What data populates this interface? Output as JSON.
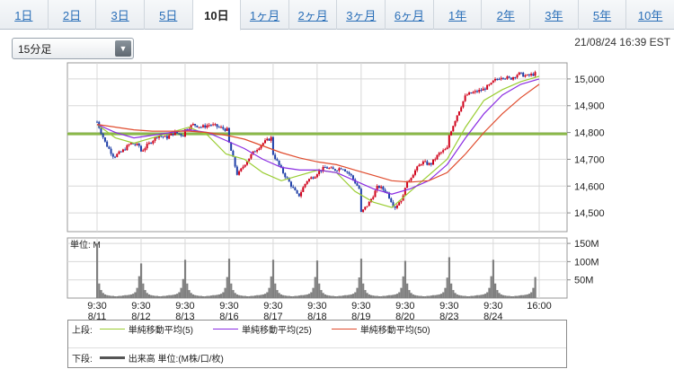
{
  "tabs": [
    {
      "label": "1日",
      "active": false
    },
    {
      "label": "2日",
      "active": false
    },
    {
      "label": "3日",
      "active": false
    },
    {
      "label": "5日",
      "active": false
    },
    {
      "label": "10日",
      "active": true
    },
    {
      "label": "1ヶ月",
      "active": false
    },
    {
      "label": "2ヶ月",
      "active": false
    },
    {
      "label": "3ヶ月",
      "active": false
    },
    {
      "label": "6ヶ月",
      "active": false
    },
    {
      "label": "1年",
      "active": false
    },
    {
      "label": "2年",
      "active": false
    },
    {
      "label": "3年",
      "active": false
    },
    {
      "label": "5年",
      "active": false
    },
    {
      "label": "10年",
      "active": false
    }
  ],
  "interval_select": {
    "value": "15分足"
  },
  "timestamp": "21/08/24 16:39 EST",
  "colors": {
    "up": "#d0021b",
    "down": "#1f3fa8",
    "ma5": "#9acd32",
    "ma25": "#8a2be2",
    "ma50": "#e04b2d",
    "ref_line": "#8ab849",
    "volume": "#808080",
    "grid": "#d8d8d8"
  },
  "chart_data": [
    {
      "type": "candlestick",
      "y_ticks": [
        "15,000",
        "14,900",
        "14,800",
        "14,700",
        "14,600",
        "14,500"
      ],
      "y_tick_values": [
        15000,
        14900,
        14800,
        14700,
        14600,
        14500
      ],
      "ylim": [
        14430,
        15060
      ],
      "reference_line": 14795,
      "x_ticks": [
        {
          "time": "9:30",
          "date": "8/11"
        },
        {
          "time": "9:30",
          "date": "8/12"
        },
        {
          "time": "9:30",
          "date": "8/13"
        },
        {
          "time": "9:30",
          "date": "8/16"
        },
        {
          "time": "9:30",
          "date": "8/17"
        },
        {
          "time": "9:30",
          "date": "8/18"
        },
        {
          "time": "9:30",
          "date": "8/19"
        },
        {
          "time": "9:30",
          "date": "8/20"
        },
        {
          "time": "9:30",
          "date": "8/23"
        },
        {
          "time": "9:30",
          "date": "8/24"
        },
        {
          "time": "16:00",
          "date": ""
        }
      ],
      "day_closes": [
        [
          14840,
          14760,
          14710,
          14730,
          14760,
          14750
        ],
        [
          14730,
          14760,
          14790,
          14780,
          14800,
          14790
        ],
        [
          14810,
          14830,
          14820,
          14830,
          14820,
          14810
        ],
        [
          14760,
          14640,
          14690,
          14730,
          14760,
          14780
        ],
        [
          14720,
          14660,
          14610,
          14560,
          14620,
          14640
        ],
        [
          14650,
          14670,
          14660,
          14670,
          14640,
          14590
        ],
        [
          14500,
          14540,
          14600,
          14580,
          14520,
          14560
        ],
        [
          14600,
          14650,
          14690,
          14680,
          14720,
          14740
        ],
        [
          14790,
          14870,
          14940,
          14950,
          14960,
          14980
        ],
        [
          14990,
          15010,
          15000,
          15020,
          15010,
          15020
        ]
      ],
      "moving_averages": [
        {
          "name": "単純移動平均(5)",
          "values": [
            14830,
            14780,
            14760,
            14780,
            14800,
            14820,
            14790,
            14720,
            14700,
            14650,
            14620,
            14640,
            14660,
            14650,
            14580,
            14540,
            14520,
            14580,
            14640,
            14700,
            14820,
            14920,
            14960,
            14990,
            15010
          ]
        },
        {
          "name": "単純移動平均(25)",
          "values": [
            14830,
            14800,
            14780,
            14790,
            14800,
            14810,
            14800,
            14770,
            14740,
            14700,
            14670,
            14660,
            14660,
            14650,
            14620,
            14590,
            14570,
            14590,
            14620,
            14680,
            14780,
            14870,
            14940,
            14980,
            15000
          ]
        },
        {
          "name": "単純移動平均(50)",
          "values": [
            14830,
            14820,
            14810,
            14805,
            14805,
            14805,
            14800,
            14790,
            14775,
            14750,
            14725,
            14705,
            14690,
            14680,
            14660,
            14640,
            14620,
            14615,
            14620,
            14650,
            14720,
            14800,
            14870,
            14930,
            14980
          ]
        }
      ]
    },
    {
      "type": "bar",
      "unit_label": "単位: M",
      "y_ticks": [
        "150M",
        "100M",
        "50M"
      ],
      "y_tick_values": [
        150,
        100,
        50
      ],
      "ylim": [
        0,
        165
      ],
      "day_profile": [
        155,
        40,
        22,
        14,
        10,
        8,
        7,
        6,
        6,
        5,
        5,
        6,
        6,
        7,
        8,
        8,
        9,
        10,
        12,
        16,
        28,
        60
      ],
      "day_peaks": [
        150,
        95,
        105,
        108,
        105,
        103,
        108,
        102,
        112,
        105
      ]
    }
  ],
  "legend": {
    "top_label": "上段:",
    "bottom_label": "下段:",
    "items_top": [
      {
        "label": "単純移動平均(5)",
        "color": "#9acd32"
      },
      {
        "label": "単純移動平均(25)",
        "color": "#8a2be2"
      },
      {
        "label": "単純移動平均(50)",
        "color": "#e04b2d"
      }
    ],
    "item_bottom": {
      "label": "出来高 単位:(M株/口/枚)",
      "color": "#555555"
    }
  }
}
